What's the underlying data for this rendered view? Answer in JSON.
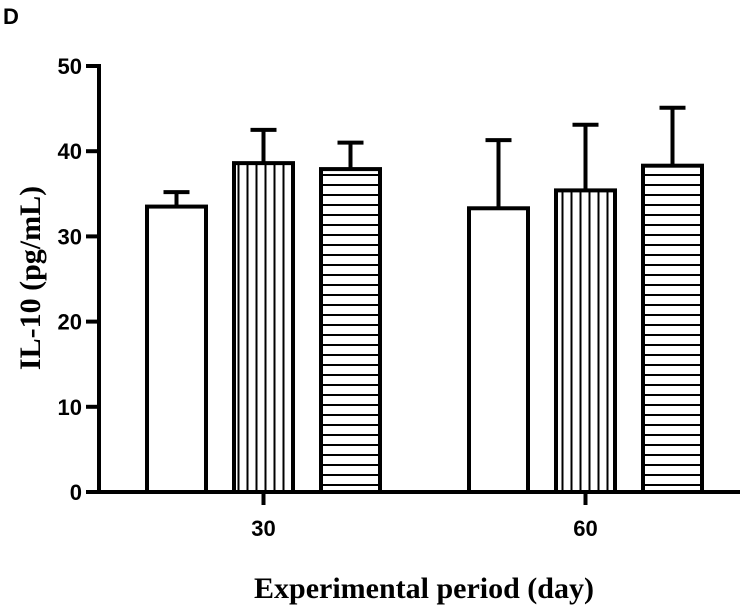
{
  "panel_label": "D",
  "chart_data": {
    "type": "bar",
    "categories": [
      "30",
      "60"
    ],
    "series": [
      {
        "pattern": "none",
        "values": [
          33.5,
          33.3
        ],
        "errors": [
          1.7,
          8.0
        ]
      },
      {
        "pattern": "vertical",
        "values": [
          38.6,
          35.4
        ],
        "errors": [
          3.9,
          7.7
        ]
      },
      {
        "pattern": "horizontal",
        "values": [
          37.9,
          38.3
        ],
        "errors": [
          3.1,
          6.8
        ]
      }
    ],
    "title": "",
    "xlabel": "Experimental period (day)",
    "ylabel": "IL-10 (pg/mL)",
    "ylim": [
      0,
      50
    ],
    "yticks": [
      "0",
      "10",
      "20",
      "30",
      "40",
      "50"
    ],
    "grid": false,
    "legend": "none",
    "colors": {
      "bar_fill": "#ffffff",
      "stroke": "#000000"
    }
  }
}
